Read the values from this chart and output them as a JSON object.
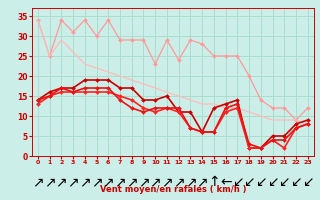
{
  "bg_color": "#cceee8",
  "grid_color": "#aaddcc",
  "xlabel": "Vent moyen/en rafales ( km/h )",
  "x_ticks": [
    0,
    1,
    2,
    3,
    4,
    5,
    6,
    7,
    8,
    9,
    10,
    11,
    12,
    13,
    14,
    15,
    16,
    17,
    18,
    19,
    20,
    21,
    22,
    23
  ],
  "ylim": [
    0,
    37
  ],
  "yticks": [
    0,
    5,
    10,
    15,
    20,
    25,
    30,
    35
  ],
  "series": [
    {
      "x": [
        0,
        1,
        2,
        3,
        4,
        5,
        6,
        7,
        8,
        9,
        10,
        11,
        12,
        13,
        14,
        15,
        16,
        17,
        18,
        19,
        20,
        21,
        22,
        23
      ],
      "y": [
        34,
        25,
        34,
        31,
        34,
        30,
        34,
        29,
        29,
        29,
        23,
        29,
        24,
        29,
        28,
        25,
        25,
        25,
        20,
        14,
        12,
        12,
        9,
        12
      ],
      "color": "#ff9999",
      "lw": 0.9,
      "marker": "D",
      "ms": 2.0
    },
    {
      "x": [
        0,
        1,
        2,
        3,
        4,
        5,
        6,
        7,
        8,
        9,
        10,
        11,
        12,
        13,
        14,
        15,
        16,
        17,
        18,
        19,
        20,
        21,
        22,
        23
      ],
      "y": [
        34,
        25,
        29,
        26,
        23,
        22,
        21,
        20,
        19,
        18,
        17,
        16,
        15,
        14,
        13,
        13,
        12,
        12,
        11,
        10,
        9,
        9,
        9,
        8
      ],
      "color": "#ffbbbb",
      "lw": 0.9,
      "marker": null
    },
    {
      "x": [
        0,
        1,
        2,
        3,
        4,
        5,
        6,
        7,
        8,
        9,
        10,
        11,
        12,
        13,
        14,
        15,
        16,
        17,
        18,
        19,
        20,
        21,
        22,
        23
      ],
      "y": [
        14,
        16,
        17,
        17,
        19,
        19,
        19,
        17,
        17,
        14,
        14,
        15,
        11,
        11,
        6,
        12,
        13,
        14,
        2,
        2,
        5,
        5,
        8,
        9
      ],
      "color": "#cc0000",
      "lw": 1.2,
      "marker": "D",
      "ms": 2.0
    },
    {
      "x": [
        0,
        1,
        2,
        3,
        4,
        5,
        6,
        7,
        8,
        9,
        10,
        11,
        12,
        13,
        14,
        15,
        16,
        17,
        18,
        19,
        20,
        21,
        22,
        23
      ],
      "y": [
        13,
        15,
        16,
        16,
        16,
        16,
        16,
        15,
        14,
        12,
        11,
        12,
        11,
        7,
        6,
        6,
        11,
        12,
        2,
        2,
        4,
        2,
        7,
        8
      ],
      "color": "#ff2222",
      "lw": 1.2,
      "marker": "D",
      "ms": 2.0
    },
    {
      "x": [
        0,
        1,
        2,
        3,
        4,
        5,
        6,
        7,
        8,
        9,
        10,
        11,
        12,
        13,
        14,
        15,
        16,
        17,
        18,
        19,
        20,
        21,
        22,
        23
      ],
      "y": [
        14,
        15,
        17,
        16,
        17,
        17,
        17,
        14,
        12,
        11,
        12,
        12,
        12,
        7,
        6,
        6,
        12,
        13,
        3,
        2,
        4,
        4,
        7,
        8
      ],
      "color": "#ee1111",
      "lw": 1.2,
      "marker": "D",
      "ms": 2.0
    }
  ],
  "arrow_symbols": [
    "↗",
    "↗",
    "↗",
    "↗",
    "↗",
    "↗",
    "↗",
    "↗",
    "↗",
    "↗",
    "↗",
    "↗",
    "↗",
    "↗",
    "↗",
    "↑",
    "←",
    "↙",
    "↙",
    "↙",
    "↙",
    "↙",
    "↙",
    "↙"
  ]
}
